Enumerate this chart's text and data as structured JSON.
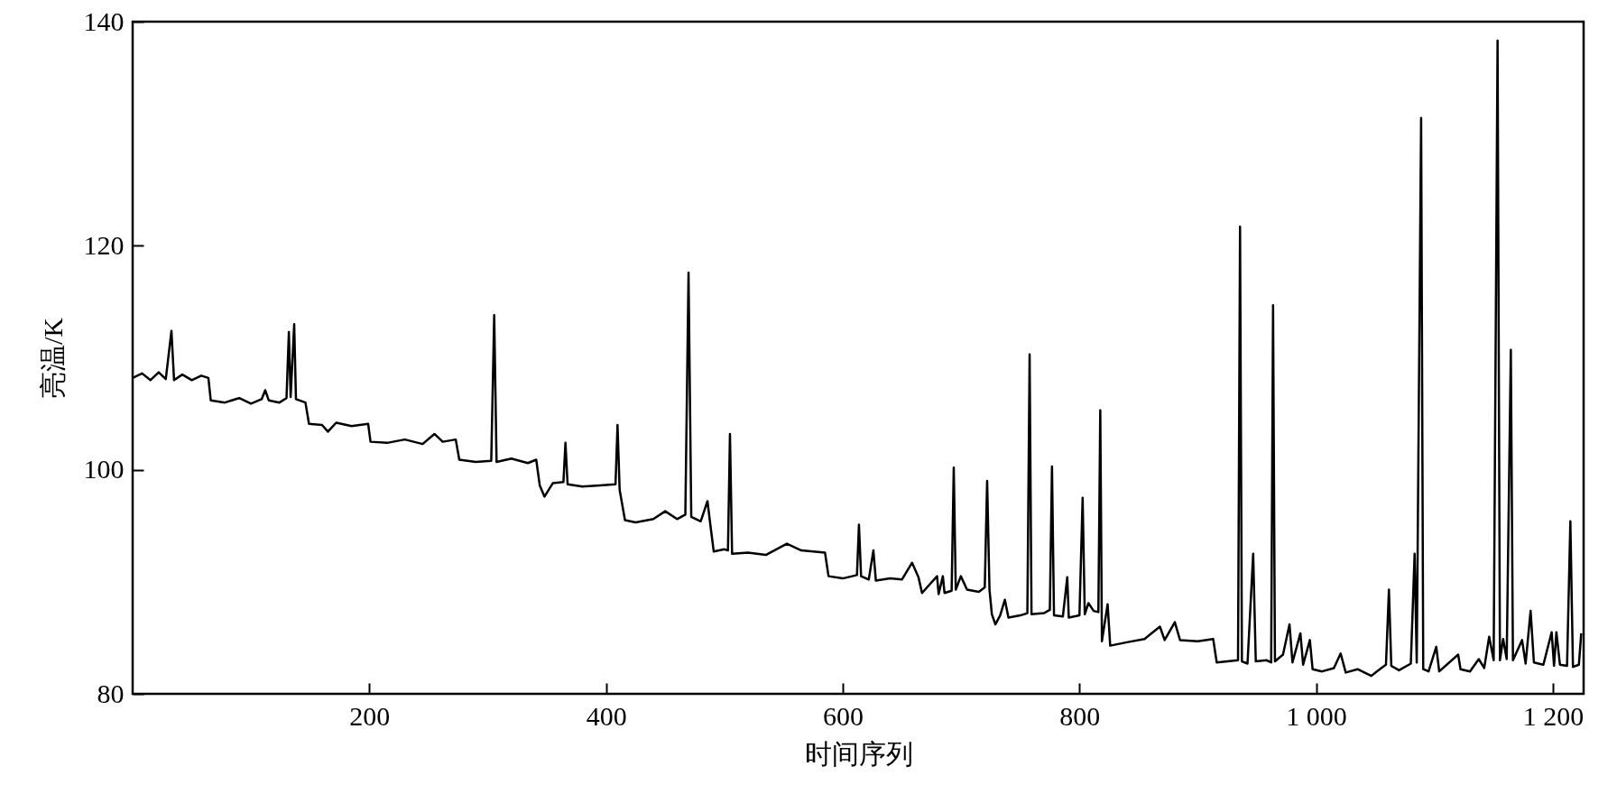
{
  "chart_data": {
    "type": "line",
    "xlabel": "时间序列",
    "ylabel": "亮温/K",
    "grid": false,
    "xlim": [
      0,
      1226
    ],
    "ylim": [
      80,
      140
    ],
    "xticks": [
      200,
      400,
      600,
      800,
      {
        "value": 1000,
        "label": "1 000"
      },
      {
        "value": 1200,
        "label": "1 200"
      }
    ],
    "yticks": [
      80,
      100,
      120,
      140
    ],
    "x": [
      0,
      8,
      15,
      22,
      28,
      32.8,
      35,
      42,
      50,
      58,
      64,
      66,
      78,
      90,
      100,
      109,
      112,
      115,
      124,
      130,
      132,
      133.5,
      136.5,
      138,
      146,
      149,
      160,
      165,
      172,
      185,
      199,
      201,
      215,
      230,
      245,
      255,
      262,
      273,
      276,
      290,
      303,
      305.5,
      307.5,
      320,
      334,
      341,
      344,
      348,
      355,
      364,
      365.7,
      367.5,
      380,
      395,
      408,
      409.7,
      411.5,
      416,
      425,
      440,
      450,
      460,
      467,
      469.7,
      472,
      480,
      485.7,
      488,
      491,
      500,
      503,
      504.7,
      506.5,
      520,
      535,
      552.8,
      565,
      585,
      588,
      600,
      612,
      613.7,
      615.5,
      622,
      625.9,
      628,
      640,
      650,
      658.6,
      664,
      667,
      679.7,
      681,
      684.6,
      686,
      692,
      693.8,
      695.5,
      699.8,
      705,
      715,
      720,
      722,
      724,
      726,
      729,
      733,
      737,
      740,
      750,
      756,
      757.9,
      759.5,
      770,
      775,
      776.8,
      778.5,
      786,
      789.7,
      791,
      800,
      802.7,
      804.5,
      807.6,
      812,
      816,
      817.6,
      819,
      823.8,
      826,
      840,
      855,
      868,
      872,
      880.6,
      885,
      900,
      913,
      916,
      925,
      934,
      935.7,
      937.3,
      942,
      946.8,
      949,
      958,
      962,
      963.6,
      965.2,
      972,
      977.5,
      980,
      986.7,
      989,
      994.7,
      997,
      1005,
      1015,
      1020.7,
      1025,
      1035,
      1046.6,
      1055,
      1059,
      1061.5,
      1063.5,
      1070,
      1080,
      1083.2,
      1085,
      1088.7,
      1090.5,
      1095,
      1101.5,
      1104,
      1120,
      1122,
      1130,
      1137.4,
      1142,
      1146.2,
      1150,
      1153.3,
      1155.3,
      1158,
      1161,
      1164.5,
      1166.3,
      1174,
      1177,
      1181.2,
      1184,
      1192,
      1199,
      1201,
      1203,
      1206,
      1212,
      1214.8,
      1217,
      1222,
      1224
    ],
    "series": [
      {
        "color": "#000000",
        "values": [
          108.2,
          108.6,
          108.0,
          108.7,
          108.1,
          112.4,
          108.0,
          108.5,
          108.0,
          108.4,
          108.2,
          106.2,
          106.0,
          106.4,
          105.9,
          106.3,
          107.1,
          106.2,
          106.0,
          106.4,
          112.3,
          106.5,
          113.0,
          106.3,
          106.0,
          104.1,
          104.0,
          103.4,
          104.2,
          103.9,
          104.1,
          102.5,
          102.4,
          102.7,
          102.3,
          103.2,
          102.5,
          102.7,
          100.9,
          100.7,
          100.8,
          113.8,
          100.7,
          101.0,
          100.6,
          100.9,
          98.6,
          97.6,
          98.8,
          98.9,
          102.4,
          98.7,
          98.5,
          98.6,
          98.7,
          104.0,
          98.2,
          95.5,
          95.3,
          95.6,
          96.3,
          95.6,
          96.0,
          117.6,
          95.8,
          95.4,
          97.2,
          95.2,
          92.7,
          92.9,
          92.8,
          103.2,
          92.5,
          92.6,
          92.4,
          93.4,
          92.8,
          92.6,
          90.5,
          90.3,
          90.6,
          95.1,
          90.5,
          90.2,
          92.8,
          90.1,
          90.3,
          90.2,
          91.7,
          90.4,
          89.0,
          90.5,
          88.9,
          90.5,
          89.0,
          89.2,
          100.2,
          89.3,
          90.5,
          89.3,
          89.1,
          89.5,
          99.0,
          89.3,
          87.1,
          86.2,
          87.0,
          88.4,
          86.8,
          87.0,
          87.2,
          110.3,
          87.1,
          87.2,
          87.5,
          100.3,
          87.0,
          86.9,
          90.4,
          86.8,
          87.0,
          97.5,
          87.1,
          88.1,
          87.4,
          87.3,
          105.3,
          84.7,
          88.0,
          84.3,
          84.6,
          84.9,
          86.0,
          84.8,
          86.4,
          84.8,
          84.7,
          84.9,
          82.8,
          82.9,
          83.0,
          121.7,
          82.9,
          82.7,
          92.5,
          82.9,
          83.0,
          82.8,
          114.7,
          82.9,
          83.5,
          86.2,
          82.8,
          85.4,
          82.6,
          84.8,
          82.2,
          82.0,
          82.3,
          83.6,
          81.9,
          82.2,
          81.6,
          82.3,
          82.6,
          89.3,
          82.5,
          82.1,
          82.7,
          92.5,
          82.8,
          131.4,
          82.2,
          82.0,
          84.2,
          82.0,
          83.5,
          82.2,
          82.0,
          83.1,
          82.3,
          85.1,
          83.0,
          138.3,
          83.0,
          84.9,
          83.1,
          110.7,
          83.0,
          84.8,
          82.7,
          87.4,
          82.8,
          82.6,
          85.5,
          82.5,
          85.5,
          82.6,
          82.5,
          95.4,
          82.4,
          82.6,
          85.4
        ]
      }
    ]
  }
}
